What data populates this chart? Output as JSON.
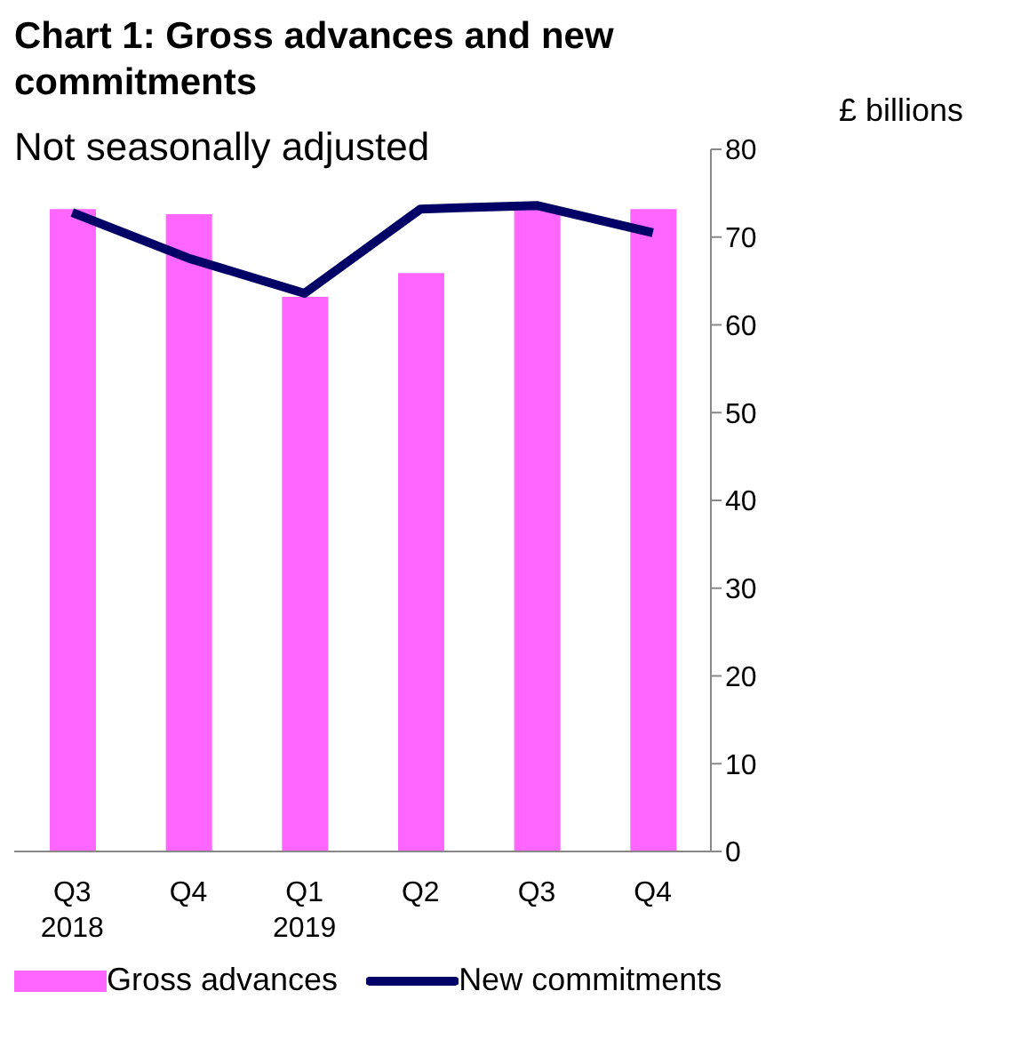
{
  "chart_data": {
    "type": "bar",
    "title": "Chart 1: Gross advances and new commitments",
    "subtitle": "Not seasonally adjusted",
    "ylabel": "£ billions",
    "categories": [
      "Q3\n2018",
      "Q4",
      "Q1\n2019",
      "Q2",
      "Q3",
      "Q4"
    ],
    "series": [
      {
        "name": "Gross advances",
        "color": "#ff66ff",
        "values": [
          73.2,
          72.6,
          63.2,
          65.9,
          73.4,
          73.2
        ]
      },
      {
        "name": "New commitments",
        "type": "line",
        "color": "#000066",
        "values": [
          72.8,
          67.6,
          63.6,
          73.2,
          73.6,
          70.5
        ]
      }
    ],
    "ylim": [
      0,
      80
    ],
    "yticks": [
      0,
      10,
      20,
      30,
      40,
      50,
      60,
      70,
      80
    ],
    "grid": false,
    "legend": "bottom",
    "marker": "none"
  }
}
